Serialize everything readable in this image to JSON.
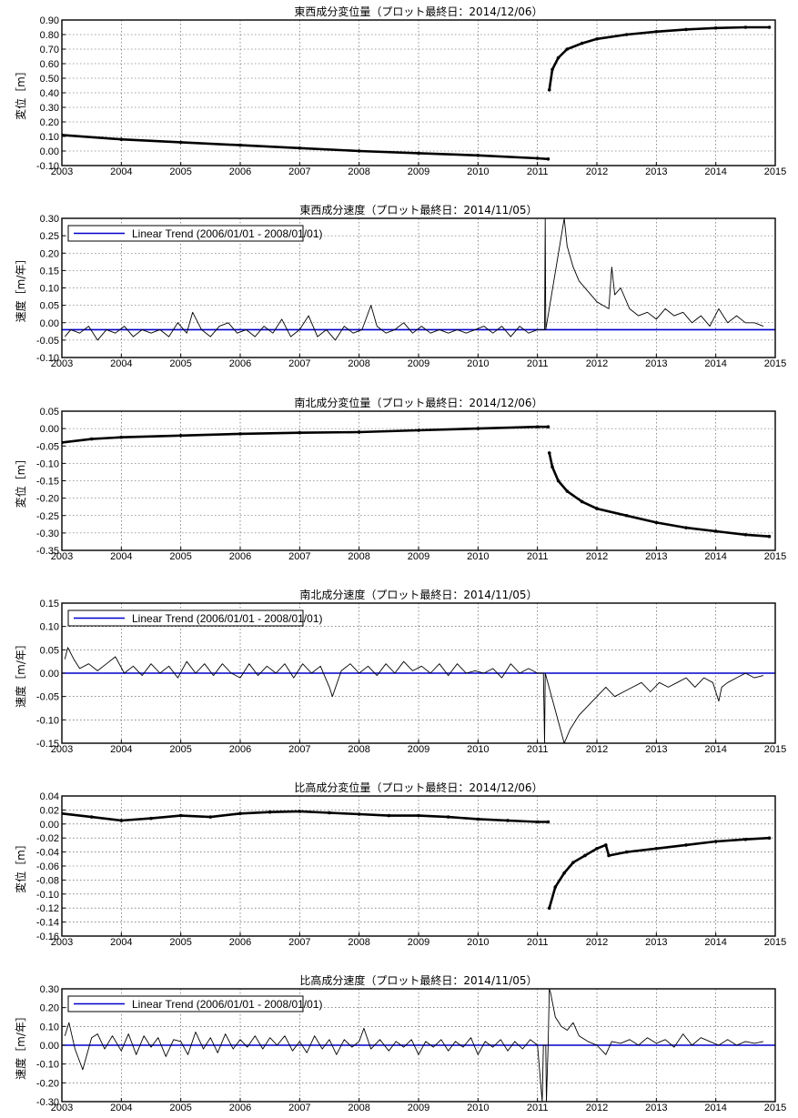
{
  "chart_data": [
    {
      "type": "scatter",
      "title": "東西成分変位量（プロット最終日：2014/12/06）",
      "ylabel": "変位［m］",
      "xlim": [
        2003,
        2015
      ],
      "ylim": [
        -0.1,
        0.9
      ],
      "x_ticks": [
        "2003",
        "2004",
        "2005",
        "2006",
        "2007",
        "2008",
        "2009",
        "2010",
        "2011",
        "2012",
        "2013",
        "2014",
        "2015"
      ],
      "y_ticks": [
        "0.90",
        "0.80",
        "0.70",
        "0.60",
        "0.50",
        "0.40",
        "0.30",
        "0.20",
        "0.10",
        "0.00",
        "-0.10"
      ],
      "grid": true,
      "series": [
        {
          "color": "#000000",
          "x": [
            2003.0,
            2004.0,
            2005.0,
            2006.0,
            2007.0,
            2008.0,
            2009.0,
            2010.0,
            2011.0,
            2011.18,
            2011.2,
            2011.25,
            2011.35,
            2011.5,
            2011.75,
            2012.0,
            2012.5,
            2013.0,
            2013.5,
            2014.0,
            2014.5,
            2014.9
          ],
          "y": [
            0.11,
            0.08,
            0.06,
            0.04,
            0.02,
            0.0,
            -0.015,
            -0.03,
            -0.05,
            -0.055,
            0.42,
            0.56,
            0.64,
            0.7,
            0.74,
            0.77,
            0.8,
            0.82,
            0.835,
            0.845,
            0.85,
            0.85
          ]
        }
      ]
    },
    {
      "type": "line",
      "title": "東西成分速度（プロット最終日：2014/11/05）",
      "ylabel": "速度［m/年］",
      "xlim": [
        2003,
        2015
      ],
      "ylim": [
        -0.1,
        0.3
      ],
      "x_ticks": [
        "2003",
        "2004",
        "2005",
        "2006",
        "2007",
        "2008",
        "2009",
        "2010",
        "2011",
        "2012",
        "2013",
        "2014",
        "2015"
      ],
      "y_ticks": [
        "0.30",
        "0.25",
        "0.20",
        "0.15",
        "0.10",
        "0.05",
        "0.00",
        "-0.05",
        "-0.10"
      ],
      "grid": true,
      "legend": "top-left",
      "trend": {
        "name": "Linear Trend (2006/01/01 - 2008/01/01)",
        "y": -0.02,
        "color": "#0000cc"
      },
      "series": [
        {
          "color": "#000000",
          "x": [
            2003.05,
            2003.15,
            2003.3,
            2003.45,
            2003.6,
            2003.75,
            2003.9,
            2004.05,
            2004.2,
            2004.35,
            2004.5,
            2004.65,
            2004.8,
            2004.95,
            2005.1,
            2005.2,
            2005.35,
            2005.5,
            2005.65,
            2005.8,
            2005.95,
            2006.1,
            2006.25,
            2006.4,
            2006.55,
            2006.7,
            2006.85,
            2007.0,
            2007.15,
            2007.3,
            2007.45,
            2007.6,
            2007.75,
            2007.9,
            2008.05,
            2008.2,
            2008.3,
            2008.45,
            2008.6,
            2008.75,
            2008.9,
            2009.05,
            2009.2,
            2009.35,
            2009.5,
            2009.65,
            2009.8,
            2009.95,
            2010.1,
            2010.25,
            2010.4,
            2010.55,
            2010.7,
            2010.85,
            2011.0,
            2011.12,
            2011.13,
            2011.14,
            2011.45,
            2011.5,
            2011.6,
            2011.7,
            2011.85,
            2012.0,
            2012.1,
            2012.2,
            2012.25,
            2012.3,
            2012.4,
            2012.55,
            2012.7,
            2012.85,
            2013.0,
            2013.15,
            2013.3,
            2013.45,
            2013.6,
            2013.75,
            2013.9,
            2014.05,
            2014.2,
            2014.35,
            2014.5,
            2014.65,
            2014.8
          ],
          "y": [
            -0.04,
            -0.02,
            -0.03,
            -0.01,
            -0.05,
            -0.02,
            -0.03,
            -0.01,
            -0.04,
            -0.02,
            -0.03,
            -0.02,
            -0.04,
            0.0,
            -0.03,
            0.03,
            -0.02,
            -0.04,
            -0.01,
            0.0,
            -0.03,
            -0.02,
            -0.04,
            -0.01,
            -0.03,
            0.01,
            -0.04,
            -0.02,
            0.02,
            -0.04,
            -0.02,
            -0.05,
            -0.01,
            -0.03,
            -0.02,
            0.05,
            -0.01,
            -0.03,
            -0.02,
            0.0,
            -0.03,
            -0.01,
            -0.03,
            -0.02,
            -0.03,
            -0.02,
            -0.03,
            -0.02,
            -0.01,
            -0.03,
            -0.01,
            -0.04,
            -0.01,
            -0.03,
            -0.02,
            -0.02,
            0.3,
            -0.02,
            0.3,
            0.22,
            0.16,
            0.12,
            0.09,
            0.06,
            0.05,
            0.04,
            0.16,
            0.08,
            0.1,
            0.04,
            0.02,
            0.03,
            0.01,
            0.04,
            0.02,
            0.03,
            0.0,
            0.02,
            -0.01,
            0.04,
            0.0,
            0.02,
            0.0,
            0.0,
            -0.01
          ]
        }
      ]
    },
    {
      "type": "scatter",
      "title": "南北成分変位量（プロット最終日：2014/12/06）",
      "ylabel": "変位［m］",
      "xlim": [
        2003,
        2015
      ],
      "ylim": [
        -0.35,
        0.05
      ],
      "x_ticks": [
        "2003",
        "2004",
        "2005",
        "2006",
        "2007",
        "2008",
        "2009",
        "2010",
        "2011",
        "2012",
        "2013",
        "2014",
        "2015"
      ],
      "y_ticks": [
        "0.05",
        "0.00",
        "-0.05",
        "-0.10",
        "-0.15",
        "-0.20",
        "-0.25",
        "-0.30",
        "-0.35"
      ],
      "grid": true,
      "series": [
        {
          "color": "#000000",
          "x": [
            2003.0,
            2003.5,
            2004.0,
            2005.0,
            2006.0,
            2007.0,
            2008.0,
            2009.0,
            2010.0,
            2011.0,
            2011.18,
            2011.2,
            2011.25,
            2011.35,
            2011.5,
            2011.75,
            2012.0,
            2012.5,
            2013.0,
            2013.5,
            2014.0,
            2014.5,
            2014.9
          ],
          "y": [
            -0.04,
            -0.03,
            -0.025,
            -0.02,
            -0.015,
            -0.012,
            -0.01,
            -0.005,
            0.0,
            0.005,
            0.005,
            -0.07,
            -0.11,
            -0.15,
            -0.18,
            -0.21,
            -0.23,
            -0.25,
            -0.27,
            -0.285,
            -0.295,
            -0.305,
            -0.31
          ]
        }
      ]
    },
    {
      "type": "line",
      "title": "南北成分速度（プロット最終日：2014/11/05）",
      "ylabel": "速度［m/年］",
      "xlim": [
        2003,
        2015
      ],
      "ylim": [
        -0.15,
        0.15
      ],
      "x_ticks": [
        "2003",
        "2004",
        "2005",
        "2006",
        "2007",
        "2008",
        "2009",
        "2010",
        "2011",
        "2012",
        "2013",
        "2014",
        "2015"
      ],
      "y_ticks": [
        "0.15",
        "0.10",
        "0.05",
        "0.00",
        "-0.05",
        "-0.10",
        "-0.15"
      ],
      "grid": true,
      "legend": "top-left",
      "trend": {
        "name": "Linear Trend (2006/01/01 - 2008/01/01)",
        "y": 0.0,
        "color": "#0000cc"
      },
      "series": [
        {
          "color": "#000000",
          "x": [
            2003.05,
            2003.1,
            2003.2,
            2003.3,
            2003.45,
            2003.6,
            2003.75,
            2003.9,
            2004.05,
            2004.2,
            2004.35,
            2004.5,
            2004.65,
            2004.8,
            2004.95,
            2005.1,
            2005.25,
            2005.4,
            2005.55,
            2005.7,
            2005.85,
            2006.0,
            2006.15,
            2006.3,
            2006.45,
            2006.6,
            2006.75,
            2006.9,
            2007.05,
            2007.2,
            2007.35,
            2007.5,
            2007.55,
            2007.7,
            2007.85,
            2008.0,
            2008.15,
            2008.3,
            2008.45,
            2008.6,
            2008.75,
            2008.9,
            2009.05,
            2009.2,
            2009.35,
            2009.5,
            2009.65,
            2009.8,
            2009.95,
            2010.1,
            2010.25,
            2010.4,
            2010.55,
            2010.7,
            2010.85,
            2011.0,
            2011.1,
            2011.12,
            2011.13,
            2011.45,
            2011.55,
            2011.7,
            2011.85,
            2012.0,
            2012.15,
            2012.3,
            2012.45,
            2012.6,
            2012.75,
            2012.9,
            2013.05,
            2013.2,
            2013.35,
            2013.5,
            2013.65,
            2013.8,
            2013.95,
            2014.05,
            2014.1,
            2014.2,
            2014.35,
            2014.5,
            2014.65,
            2014.8
          ],
          "y": [
            0.03,
            0.055,
            0.03,
            0.01,
            0.02,
            0.005,
            0.02,
            0.035,
            0.0,
            0.015,
            -0.005,
            0.02,
            0.0,
            0.015,
            -0.01,
            0.025,
            0.0,
            0.02,
            -0.005,
            0.02,
            0.0,
            -0.01,
            0.02,
            -0.005,
            0.015,
            0.0,
            0.02,
            -0.01,
            0.02,
            0.0,
            0.015,
            -0.03,
            -0.05,
            0.005,
            0.02,
            0.0,
            0.015,
            -0.005,
            0.02,
            0.0,
            0.025,
            0.005,
            0.015,
            0.0,
            0.02,
            -0.005,
            0.02,
            0.0,
            0.005,
            0.0,
            0.01,
            -0.01,
            0.02,
            0.0,
            0.01,
            0.0,
            0.0,
            -0.15,
            0.0,
            -0.15,
            -0.12,
            -0.09,
            -0.07,
            -0.05,
            -0.03,
            -0.05,
            -0.04,
            -0.03,
            -0.02,
            -0.04,
            -0.02,
            -0.03,
            -0.02,
            -0.01,
            -0.03,
            -0.01,
            -0.02,
            -0.06,
            -0.03,
            -0.02,
            -0.01,
            0.0,
            -0.01,
            -0.005
          ]
        }
      ]
    },
    {
      "type": "scatter",
      "title": "比高成分変位量（プロット最終日：2014/12/06）",
      "ylabel": "変位［m］",
      "xlim": [
        2003,
        2015
      ],
      "ylim": [
        -0.16,
        0.04
      ],
      "x_ticks": [
        "2003",
        "2004",
        "2005",
        "2006",
        "2007",
        "2008",
        "2009",
        "2010",
        "2011",
        "2012",
        "2013",
        "2014",
        "2015"
      ],
      "y_ticks": [
        "0.04",
        "0.02",
        "0.00",
        "-0.02",
        "-0.04",
        "-0.06",
        "-0.08",
        "-0.10",
        "-0.12",
        "-0.14",
        "-0.16"
      ],
      "grid": true,
      "series": [
        {
          "color": "#000000",
          "x": [
            2003.0,
            2003.5,
            2004.0,
            2004.5,
            2005.0,
            2005.5,
            2006.0,
            2006.5,
            2007.0,
            2007.5,
            2008.0,
            2008.5,
            2009.0,
            2009.5,
            2010.0,
            2010.5,
            2011.0,
            2011.18,
            2011.2,
            2011.3,
            2011.45,
            2011.6,
            2011.8,
            2012.0,
            2012.15,
            2012.2,
            2012.5,
            2013.0,
            2013.5,
            2014.0,
            2014.5,
            2014.9
          ],
          "y": [
            0.015,
            0.01,
            0.005,
            0.008,
            0.012,
            0.01,
            0.015,
            0.017,
            0.018,
            0.016,
            0.014,
            0.012,
            0.012,
            0.01,
            0.007,
            0.005,
            0.003,
            0.003,
            -0.12,
            -0.09,
            -0.07,
            -0.055,
            -0.045,
            -0.035,
            -0.03,
            -0.045,
            -0.04,
            -0.035,
            -0.03,
            -0.025,
            -0.022,
            -0.02
          ]
        }
      ]
    },
    {
      "type": "line",
      "title": "比高成分速度（プロット最終日：2014/11/05）",
      "ylabel": "速度［m/年］",
      "xlim": [
        2003,
        2015
      ],
      "ylim": [
        -0.3,
        0.3
      ],
      "x_ticks": [
        "2003",
        "2004",
        "2005",
        "2006",
        "2007",
        "2008",
        "2009",
        "2010",
        "2011",
        "2012",
        "2013",
        "2014",
        "2015"
      ],
      "y_ticks": [
        "0.30",
        "0.20",
        "0.10",
        "0.00",
        "-0.10",
        "-0.20",
        "-0.30"
      ],
      "grid": true,
      "legend": "top-left",
      "trend": {
        "name": "Linear Trend (2006/01/01 - 2008/01/01)",
        "y": 0.0,
        "color": "#0000cc"
      },
      "series": [
        {
          "color": "#000000",
          "x": [
            2003.05,
            2003.12,
            2003.22,
            2003.35,
            2003.5,
            2003.6,
            2003.72,
            2003.85,
            2004.0,
            2004.12,
            2004.25,
            2004.38,
            2004.5,
            2004.62,
            2004.75,
            2004.88,
            2005.0,
            2005.12,
            2005.25,
            2005.38,
            2005.5,
            2005.62,
            2005.75,
            2005.88,
            2006.0,
            2006.12,
            2006.25,
            2006.38,
            2006.5,
            2006.62,
            2006.75,
            2006.88,
            2007.0,
            2007.12,
            2007.25,
            2007.38,
            2007.5,
            2007.62,
            2007.75,
            2007.88,
            2008.0,
            2008.08,
            2008.2,
            2008.35,
            2008.5,
            2008.62,
            2008.75,
            2008.88,
            2009.0,
            2009.12,
            2009.25,
            2009.38,
            2009.5,
            2009.62,
            2009.75,
            2009.88,
            2010.0,
            2010.12,
            2010.25,
            2010.38,
            2010.5,
            2010.62,
            2010.75,
            2010.88,
            2011.0,
            2011.08,
            2011.1,
            2011.14,
            2011.15,
            2011.18,
            2011.2,
            2011.22,
            2011.3,
            2011.4,
            2011.5,
            2011.6,
            2011.7,
            2011.85,
            2012.0,
            2012.15,
            2012.25,
            2012.4,
            2012.55,
            2012.7,
            2012.85,
            2013.0,
            2013.15,
            2013.3,
            2013.45,
            2013.6,
            2013.75,
            2013.9,
            2014.05,
            2014.2,
            2014.35,
            2014.5,
            2014.65,
            2014.8
          ],
          "y": [
            0.05,
            0.12,
            -0.02,
            -0.13,
            0.04,
            0.06,
            -0.02,
            0.05,
            -0.03,
            0.06,
            -0.05,
            0.05,
            -0.01,
            0.04,
            -0.06,
            0.03,
            0.02,
            -0.05,
            0.07,
            -0.02,
            0.04,
            -0.04,
            0.06,
            -0.02,
            0.03,
            -0.01,
            0.05,
            -0.02,
            0.04,
            0.0,
            0.05,
            -0.03,
            0.02,
            -0.04,
            0.05,
            -0.02,
            0.03,
            -0.05,
            0.03,
            -0.01,
            0.02,
            0.09,
            -0.02,
            0.03,
            -0.03,
            0.02,
            -0.01,
            0.03,
            -0.05,
            0.02,
            -0.01,
            0.03,
            -0.03,
            0.02,
            -0.01,
            0.04,
            -0.05,
            0.02,
            -0.01,
            0.03,
            -0.03,
            0.02,
            -0.02,
            0.03,
            0.0,
            -0.3,
            0.0,
            0.0,
            -0.3,
            0.0,
            0.3,
            0.28,
            0.15,
            0.1,
            0.08,
            0.12,
            0.05,
            0.02,
            0.0,
            -0.05,
            0.02,
            0.01,
            0.03,
            0.0,
            0.04,
            0.01,
            0.03,
            -0.01,
            0.06,
            0.0,
            0.04,
            0.02,
            0.0,
            0.03,
            0.0,
            0.02,
            0.01,
            0.02
          ]
        }
      ]
    }
  ],
  "colors": {
    "data": "#000000",
    "trend": "#0000cc",
    "grid": "#444444",
    "frame": "#000000"
  }
}
